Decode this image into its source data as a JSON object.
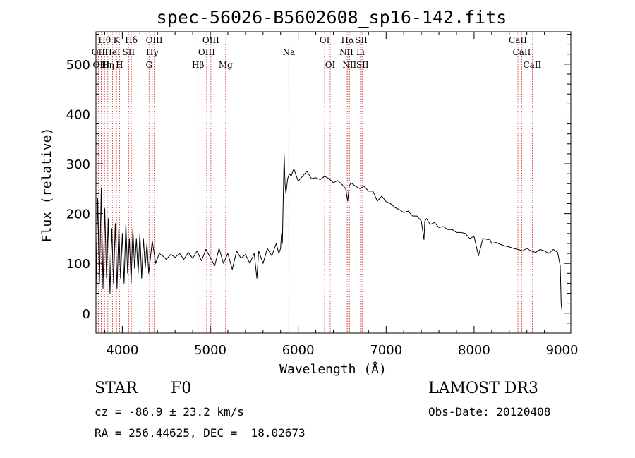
{
  "chart_data": {
    "type": "line",
    "title": "spec-56026-B5602608_sp16-142.fits",
    "xlabel": "Wavelength (Å)",
    "ylabel": "Flux (relative)",
    "xlim": [
      3700,
      9100
    ],
    "ylim": [
      -40,
      565
    ],
    "xticks": [
      4000,
      5000,
      6000,
      7000,
      8000,
      9000
    ],
    "yticks": [
      0,
      100,
      200,
      300,
      400,
      500
    ],
    "series": [
      {
        "name": "flux",
        "x": [
          3700,
          3720,
          3740,
          3760,
          3780,
          3800,
          3820,
          3840,
          3860,
          3880,
          3900,
          3920,
          3940,
          3960,
          3980,
          4000,
          4020,
          4040,
          4060,
          4080,
          4100,
          4120,
          4140,
          4160,
          4180,
          4200,
          4220,
          4240,
          4260,
          4280,
          4300,
          4340,
          4380,
          4420,
          4460,
          4500,
          4550,
          4600,
          4650,
          4700,
          4750,
          4800,
          4850,
          4900,
          4950,
          5000,
          5050,
          5100,
          5150,
          5200,
          5250,
          5300,
          5350,
          5400,
          5450,
          5500,
          5530,
          5550,
          5600,
          5650,
          5700,
          5750,
          5780,
          5800,
          5810,
          5820,
          5840,
          5850,
          5860,
          5880,
          5900,
          5920,
          5950,
          6000,
          6050,
          6100,
          6150,
          6200,
          6250,
          6300,
          6350,
          6400,
          6450,
          6500,
          6540,
          6563,
          6580,
          6600,
          6650,
          6700,
          6750,
          6800,
          6850,
          6900,
          6950,
          7000,
          7050,
          7100,
          7150,
          7200,
          7250,
          7300,
          7350,
          7400,
          7430,
          7440,
          7460,
          7500,
          7550,
          7600,
          7650,
          7700,
          7750,
          7800,
          7850,
          7900,
          7950,
          8000,
          8050,
          8100,
          8150,
          8180,
          8200,
          8250,
          8300,
          8350,
          8400,
          8450,
          8500,
          8550,
          8600,
          8650,
          8700,
          8750,
          8800,
          8850,
          8900,
          8950,
          8980,
          8990,
          9000
        ],
        "values": [
          40,
          230,
          60,
          250,
          50,
          210,
          70,
          190,
          40,
          170,
          60,
          180,
          50,
          170,
          70,
          160,
          60,
          180,
          80,
          150,
          60,
          170,
          90,
          150,
          80,
          160,
          70,
          150,
          90,
          140,
          80,
          145,
          100,
          120,
          115,
          108,
          118,
          112,
          120,
          108,
          122,
          110,
          125,
          105,
          128,
          112,
          95,
          130,
          100,
          120,
          88,
          125,
          110,
          118,
          100,
          120,
          70,
          125,
          100,
          130,
          115,
          140,
          120,
          130,
          160,
          140,
          320,
          260,
          240,
          270,
          280,
          275,
          290,
          265,
          275,
          285,
          270,
          272,
          268,
          275,
          270,
          262,
          266,
          258,
          250,
          225,
          255,
          262,
          255,
          250,
          255,
          245,
          245,
          225,
          235,
          224,
          220,
          212,
          208,
          202,
          205,
          195,
          195,
          185,
          148,
          185,
          190,
          178,
          182,
          172,
          174,
          168,
          168,
          162,
          162,
          160,
          150,
          154,
          115,
          150,
          148,
          148,
          140,
          142,
          138,
          135,
          133,
          130,
          128,
          125,
          130,
          125,
          122,
          128,
          125,
          120,
          128,
          122,
          95,
          20,
          5
        ]
      }
    ],
    "spectral_lines": [
      {
        "label": "Hθ",
        "wave": 3798,
        "row": 1
      },
      {
        "label": "K",
        "wave": 3934,
        "row": 1
      },
      {
        "label": "Hδ",
        "wave": 4102,
        "row": 1
      },
      {
        "label": "OIII",
        "wave": 4363,
        "row": 1
      },
      {
        "label": "OIII",
        "wave": 5007,
        "row": 1
      },
      {
        "label": "OI",
        "wave": 6300,
        "row": 1
      },
      {
        "label": "Hα",
        "wave": 6563,
        "row": 1
      },
      {
        "label": "SII",
        "wave": 6717,
        "row": 1
      },
      {
        "label": "CaII",
        "wave": 8498,
        "row": 1
      },
      {
        "label": "OII",
        "wave": 3727,
        "row": 2
      },
      {
        "label": "HeI",
        "wave": 3889,
        "row": 2
      },
      {
        "label": "SII",
        "wave": 4072,
        "row": 2
      },
      {
        "label": "Hγ",
        "wave": 4340,
        "row": 2
      },
      {
        "label": "OIII",
        "wave": 4959,
        "row": 2
      },
      {
        "label": "Na",
        "wave": 5893,
        "row": 2
      },
      {
        "label": "NII",
        "wave": 6548,
        "row": 2
      },
      {
        "label": "Li",
        "wave": 6708,
        "row": 2
      },
      {
        "label": "CaII",
        "wave": 8542,
        "row": 2
      },
      {
        "label": "OIII",
        "wave": 3760,
        "row": 3
      },
      {
        "label": "Hη",
        "wave": 3835,
        "row": 3
      },
      {
        "label": "H",
        "wave": 3968,
        "row": 3
      },
      {
        "label": "G",
        "wave": 4304,
        "row": 3
      },
      {
        "label": "Hβ",
        "wave": 4861,
        "row": 3
      },
      {
        "label": "Mg",
        "wave": 5175,
        "row": 3
      },
      {
        "label": "OI",
        "wave": 6364,
        "row": 3
      },
      {
        "label": "NII",
        "wave": 6583,
        "row": 3
      },
      {
        "label": "SII",
        "wave": 6731,
        "row": 3
      },
      {
        "label": "CaII",
        "wave": 8662,
        "row": 3
      }
    ],
    "line_color": "#cc2222"
  },
  "info": {
    "class": "STAR",
    "subclass": "F0",
    "survey": "LAMOST DR3",
    "cz": "cz = -86.9 ± 23.2 km/s",
    "obs_date": "Obs-Date: 20120408",
    "radec": "RA = 256.44625, DEC =  18.02673"
  }
}
